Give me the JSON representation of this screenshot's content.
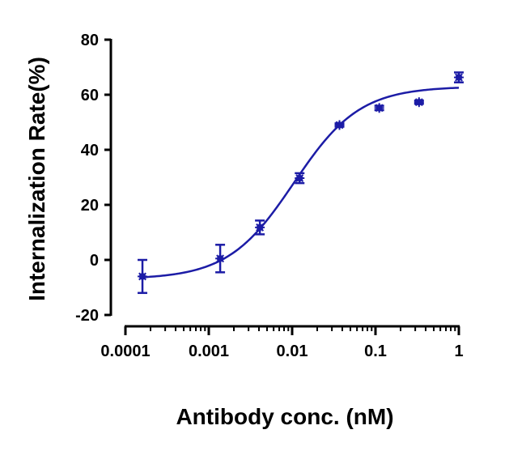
{
  "chart_data": {
    "type": "scatter",
    "xlabel": "Antibody conc. (nM)",
    "ylabel": "Internalization Rate(%)",
    "xscale": "log",
    "xlim": [
      0.0001,
      1
    ],
    "ylim": [
      -20,
      80
    ],
    "x_ticks": [
      "0.0001",
      "0.001",
      "0.01",
      "0.1",
      "1"
    ],
    "y_ticks": [
      "-20",
      "0",
      "20",
      "40",
      "60",
      "80"
    ],
    "grid": false,
    "legend": "none",
    "colors": {
      "series": "#1c1ca6",
      "axes": "#000000"
    },
    "series": [
      {
        "points": [
          {
            "x": 0.00016,
            "y": -6.0,
            "err": 6.0
          },
          {
            "x": 0.00137,
            "y": 0.5,
            "err": 5.0
          },
          {
            "x": 0.0041,
            "y": 11.8,
            "err": 2.5
          },
          {
            "x": 0.0123,
            "y": 29.7,
            "err": 1.8
          },
          {
            "x": 0.037,
            "y": 49.0,
            "err": 0.6
          },
          {
            "x": 0.111,
            "y": 55.2,
            "err": 0.8
          },
          {
            "x": 0.333,
            "y": 57.3,
            "err": 0.6
          },
          {
            "x": 1.0,
            "y": 66.3,
            "err": 1.8
          }
        ],
        "fit": {
          "model": "4PL",
          "bottom": -7.0,
          "top": 63.0,
          "ec50": 0.0105,
          "hill": 1.1
        }
      }
    ]
  }
}
